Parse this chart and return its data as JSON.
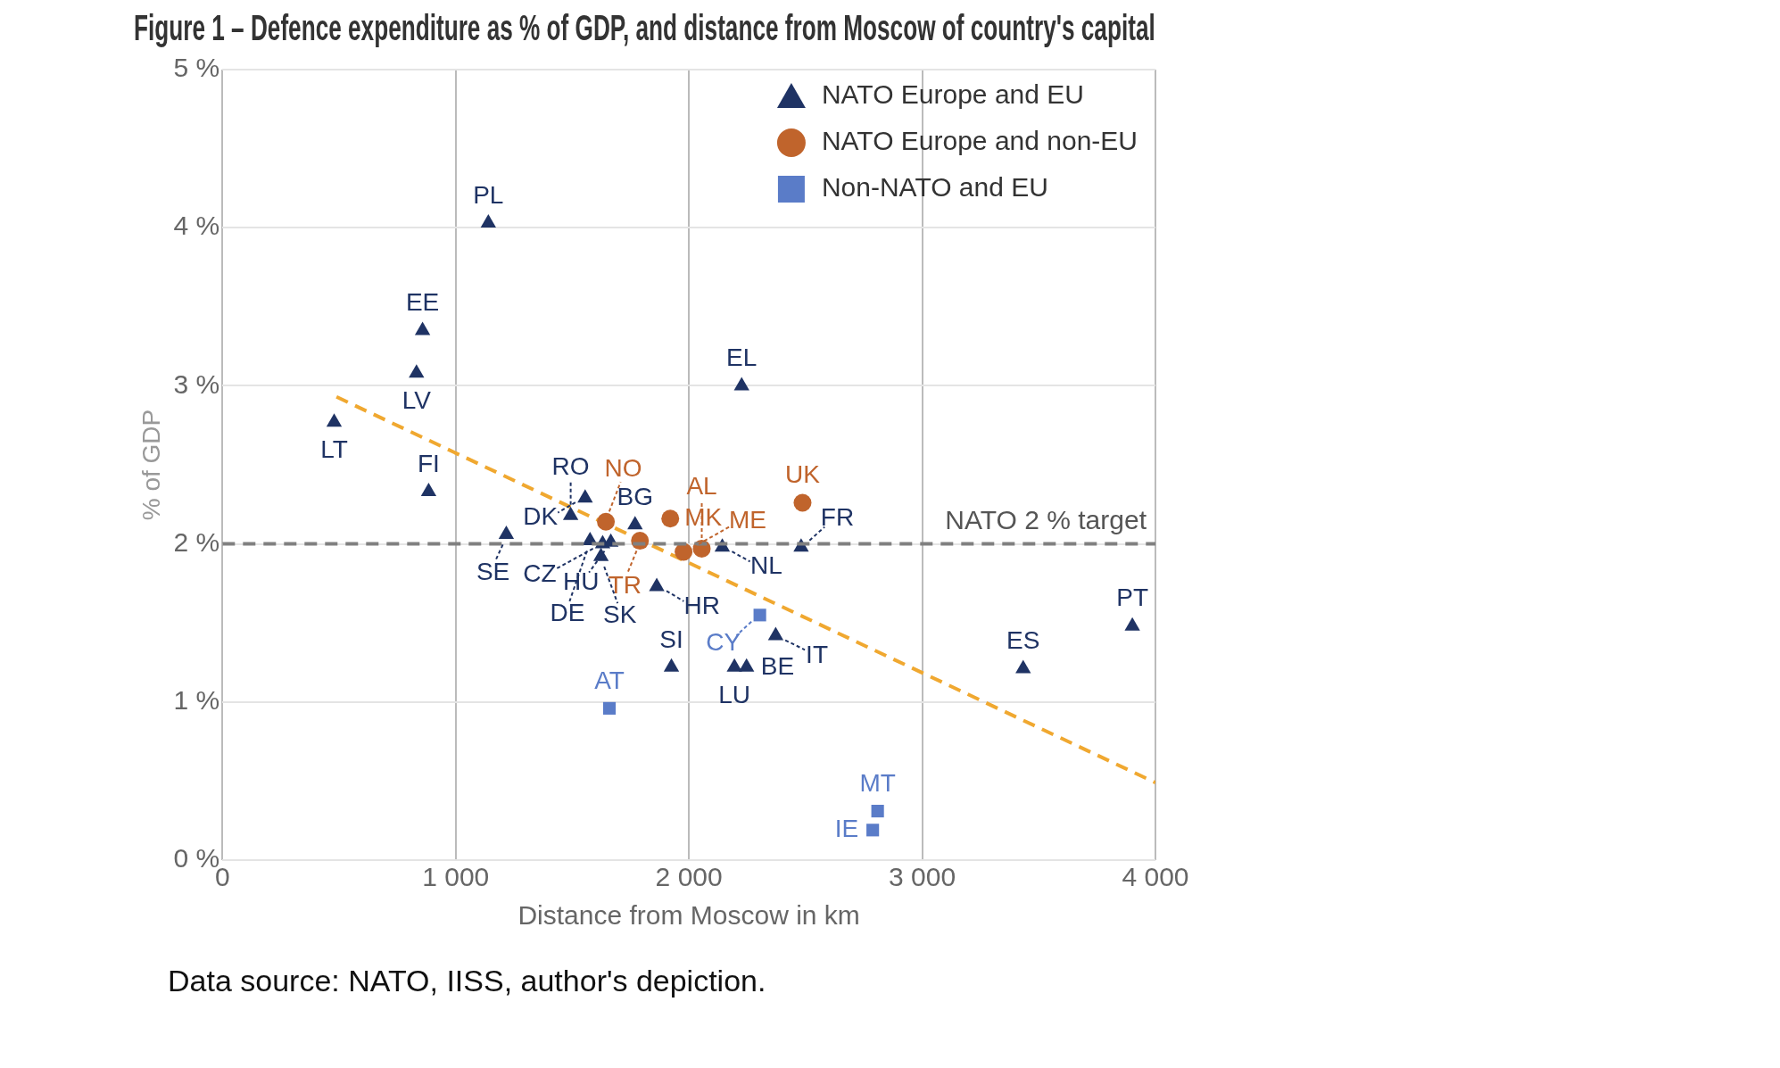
{
  "chart_data": {
    "type": "scatter",
    "title": "Figure 1 – Defence expenditure as % of GDP, and distance from Moscow of country's capital",
    "xlabel": "Distance from Moscow in km",
    "ylabel": "% of GDP",
    "xlim": [
      0,
      4000
    ],
    "xticks": [
      0,
      {
        "value": 1000,
        "label": "1 000"
      },
      {
        "value": 2000,
        "label": "2 000"
      },
      {
        "value": 3000,
        "label": "3 000"
      },
      {
        "value": 4000,
        "label": "4 000"
      }
    ],
    "ylim": [
      0,
      5
    ],
    "yticks": [
      {
        "value": 0,
        "label": "0 %"
      },
      {
        "value": 1,
        "label": "1 %"
      },
      {
        "value": 2,
        "label": "2 %"
      },
      {
        "value": 3,
        "label": "3 %"
      },
      {
        "value": 4,
        "label": "4 %"
      },
      {
        "value": 5,
        "label": "5 %"
      }
    ],
    "grid": true,
    "legend": "top right",
    "series": [
      {
        "name": "NATO Europe and EU",
        "color": "#1f3364",
        "marker": "triangle",
        "x": [
          1140,
          858,
          832,
          479,
          884,
          1217,
          1493,
          1555,
          1576,
          1630,
          1665,
          1623,
          1769,
          1862,
          2143,
          2481,
          2226,
          2372,
          1925,
          2195,
          2247,
          3433,
          3901
        ],
        "values": [
          4.03,
          3.35,
          3.08,
          2.77,
          2.33,
          2.06,
          2.18,
          2.29,
          2.02,
          2.0,
          2.01,
          1.92,
          2.12,
          1.73,
          1.98,
          1.98,
          3.0,
          1.42,
          1.22,
          1.22,
          1.22,
          1.21,
          1.48
        ]
      },
      {
        "name": "NATO Europe and non-EU",
        "color": "#c0642c",
        "marker": "circle",
        "x": [
          1644,
          1790,
          1920,
          2055,
          1977,
          2487
        ],
        "values": [
          2.14,
          2.02,
          2.16,
          1.97,
          1.95,
          2.26
        ]
      },
      {
        "name": "Non-NATO and EU",
        "color": "#5a7cc8",
        "marker": "square",
        "x": [
          2304,
          1659,
          2809,
          2788
        ],
        "values": [
          1.55,
          0.96,
          0.31,
          0.19
        ]
      },
      {
        "type": "line",
        "color": "#f0a830",
        "line_style": "dashed",
        "marker": "none",
        "x": [
          489,
          4000
        ],
        "values": [
          2.93,
          0.49
        ]
      }
    ],
    "ref_lines": [
      {
        "axis": "y",
        "value": 2,
        "label": "NATO 2 % target",
        "color": "#808080",
        "line_style": "dashed"
      }
    ],
    "annotations": [
      {
        "text": "PL",
        "x": 1140,
        "y": 4.03
      },
      {
        "text": "EE",
        "x": 858,
        "y": 3.35
      },
      {
        "text": "LV",
        "x": 832,
        "y": 3.08
      },
      {
        "text": "LT",
        "x": 479,
        "y": 2.77
      },
      {
        "text": "FI",
        "x": 884,
        "y": 2.33
      },
      {
        "text": "SE",
        "x": 1217,
        "y": 2.06
      },
      {
        "text": "RO",
        "x": 1493,
        "y": 2.18
      },
      {
        "text": "DK",
        "x": 1555,
        "y": 2.29
      },
      {
        "text": "DE",
        "x": 1576,
        "y": 2.02
      },
      {
        "text": "CZ",
        "x": 1630,
        "y": 2.0
      },
      {
        "text": "HU",
        "x": 1665,
        "y": 2.01
      },
      {
        "text": "SK",
        "x": 1623,
        "y": 1.92
      },
      {
        "text": "BG",
        "x": 1769,
        "y": 2.12
      },
      {
        "text": "HR",
        "x": 1862,
        "y": 1.73
      },
      {
        "text": "NL",
        "x": 2143,
        "y": 1.98
      },
      {
        "text": "FR",
        "x": 2481,
        "y": 1.98
      },
      {
        "text": "EL",
        "x": 2226,
        "y": 3.0
      },
      {
        "text": "IT",
        "x": 2372,
        "y": 1.42
      },
      {
        "text": "SI",
        "x": 1925,
        "y": 1.22
      },
      {
        "text": "LU",
        "x": 2195,
        "y": 1.22
      },
      {
        "text": "BE",
        "x": 2247,
        "y": 1.22
      },
      {
        "text": "ES",
        "x": 3433,
        "y": 1.21
      },
      {
        "text": "PT",
        "x": 3901,
        "y": 1.48
      },
      {
        "text": "NO",
        "x": 1644,
        "y": 2.14
      },
      {
        "text": "TR",
        "x": 1790,
        "y": 2.02
      },
      {
        "text": "MK",
        "x": 1920,
        "y": 2.16
      },
      {
        "text": "AL",
        "x": 2055,
        "y": 1.97
      },
      {
        "text": "ME",
        "x": 1977,
        "y": 1.95
      },
      {
        "text": "UK",
        "x": 2487,
        "y": 2.26
      },
      {
        "text": "CY",
        "x": 2304,
        "y": 1.55
      },
      {
        "text": "AT",
        "x": 1659,
        "y": 0.96
      },
      {
        "text": "MT",
        "x": 2809,
        "y": 0.31
      },
      {
        "text": "IE",
        "x": 2788,
        "y": 0.19
      },
      "Data source: NATO, IISS, author's depiction."
    ]
  }
}
